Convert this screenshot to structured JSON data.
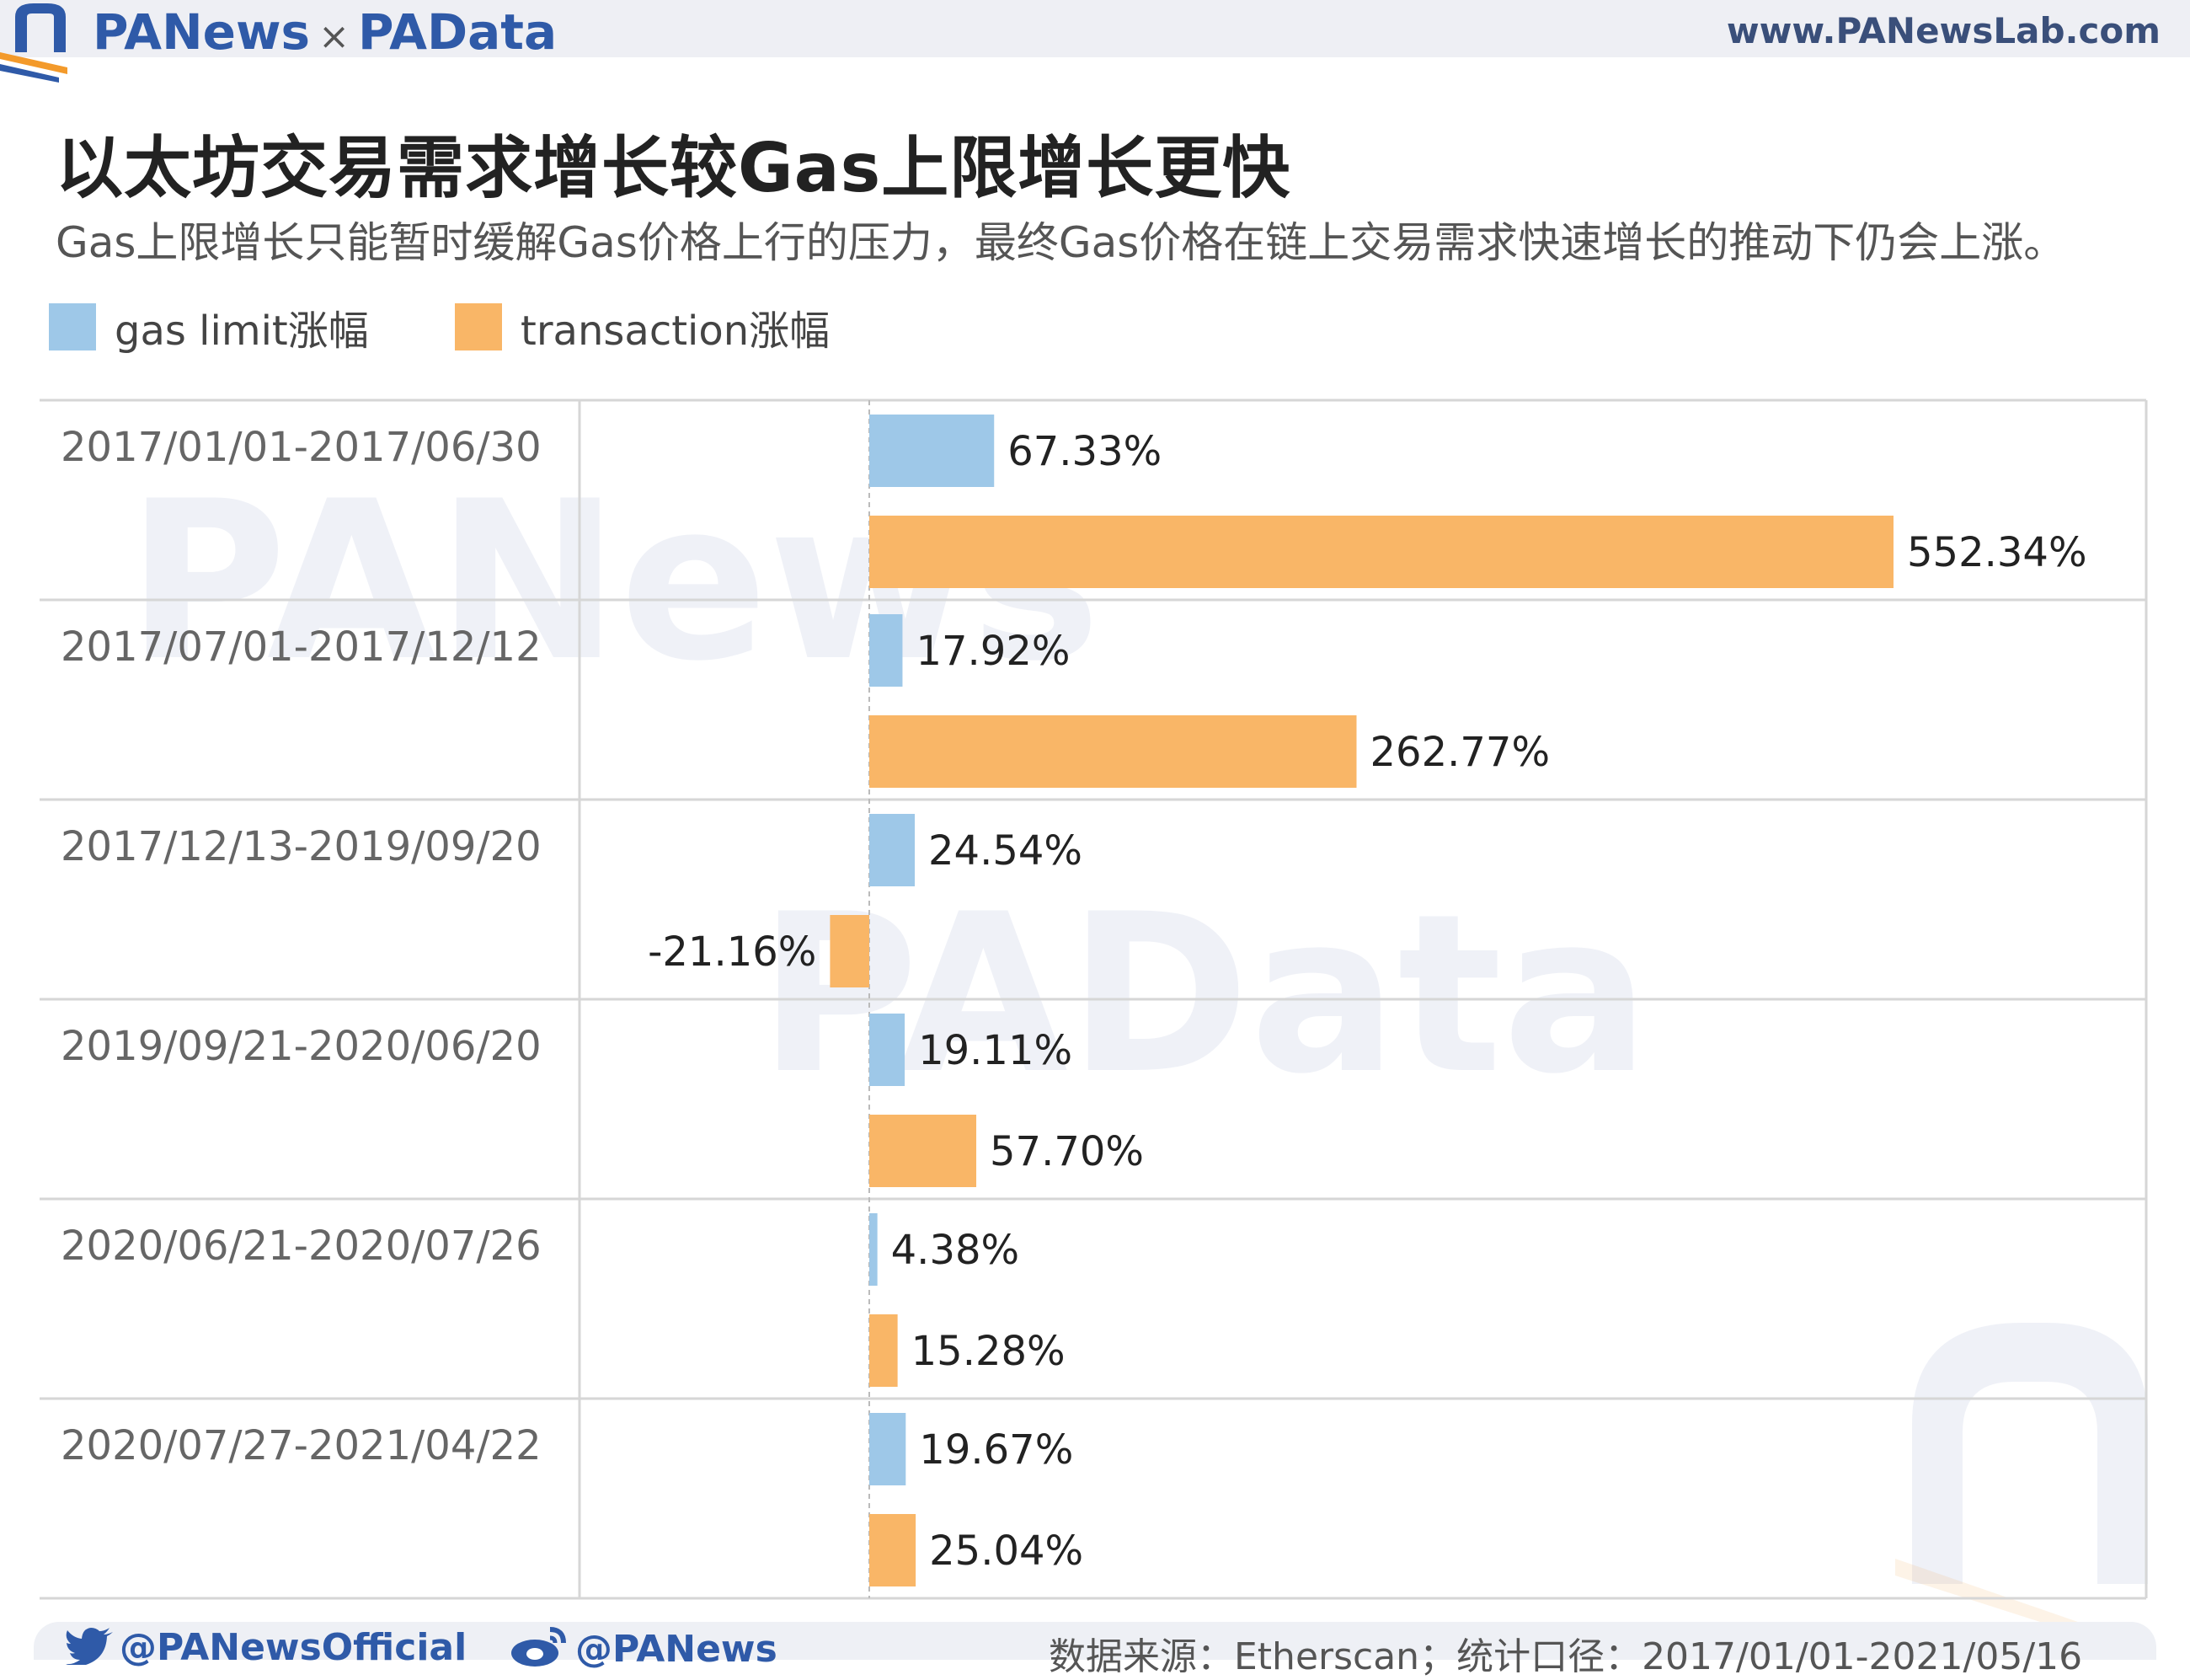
{
  "header": {
    "brand_left": "PANews",
    "brand_sep": "×",
    "brand_right": "PAData",
    "site_url": "www.PANewsLab.com"
  },
  "chart_data": {
    "type": "bar",
    "orientation": "horizontal",
    "title": "以太坊交易需求增长较Gas上限增长更快",
    "subtitle": "Gas上限增长只能暂时缓解Gas价格上行的压力，最终Gas价格在链上交易需求快速增长的推动下仍会上涨。",
    "categories": [
      "2017/01/01-2017/06/30",
      "2017/07/01-2017/12/12",
      "2017/12/13-2019/09/20",
      "2019/09/21-2020/06/20",
      "2020/06/21-2020/07/26",
      "2020/07/27-2021/04/22"
    ],
    "series": [
      {
        "name": "gas limit涨幅",
        "color": "#9ec8e8",
        "values": [
          67.33,
          17.92,
          24.54,
          19.11,
          4.38,
          19.67
        ],
        "labels": [
          "67.33%",
          "17.92%",
          "24.54%",
          "19.11%",
          "4.38%",
          "19.67%"
        ]
      },
      {
        "name": "transaction涨幅",
        "color": "#f9b667",
        "values": [
          552.34,
          262.77,
          -21.16,
          57.7,
          15.28,
          25.04
        ],
        "labels": [
          "552.34%",
          "262.77%",
          "-21.16%",
          "57.70%",
          "15.28%",
          "25.04%"
        ]
      }
    ],
    "legend_position": "top-left",
    "grid": false
  },
  "watermark": {
    "top": "PANews",
    "bottom": "PAData"
  },
  "footer": {
    "twitter": "@PANewsOfficial",
    "weibo": "@PANews",
    "source": "数据来源：Etherscan；统计口径：2017/01/01-2021/05/16"
  },
  "icons": {
    "twitter": "twitter-bird-icon",
    "weibo": "weibo-icon",
    "logo": "panews-logo-icon"
  }
}
